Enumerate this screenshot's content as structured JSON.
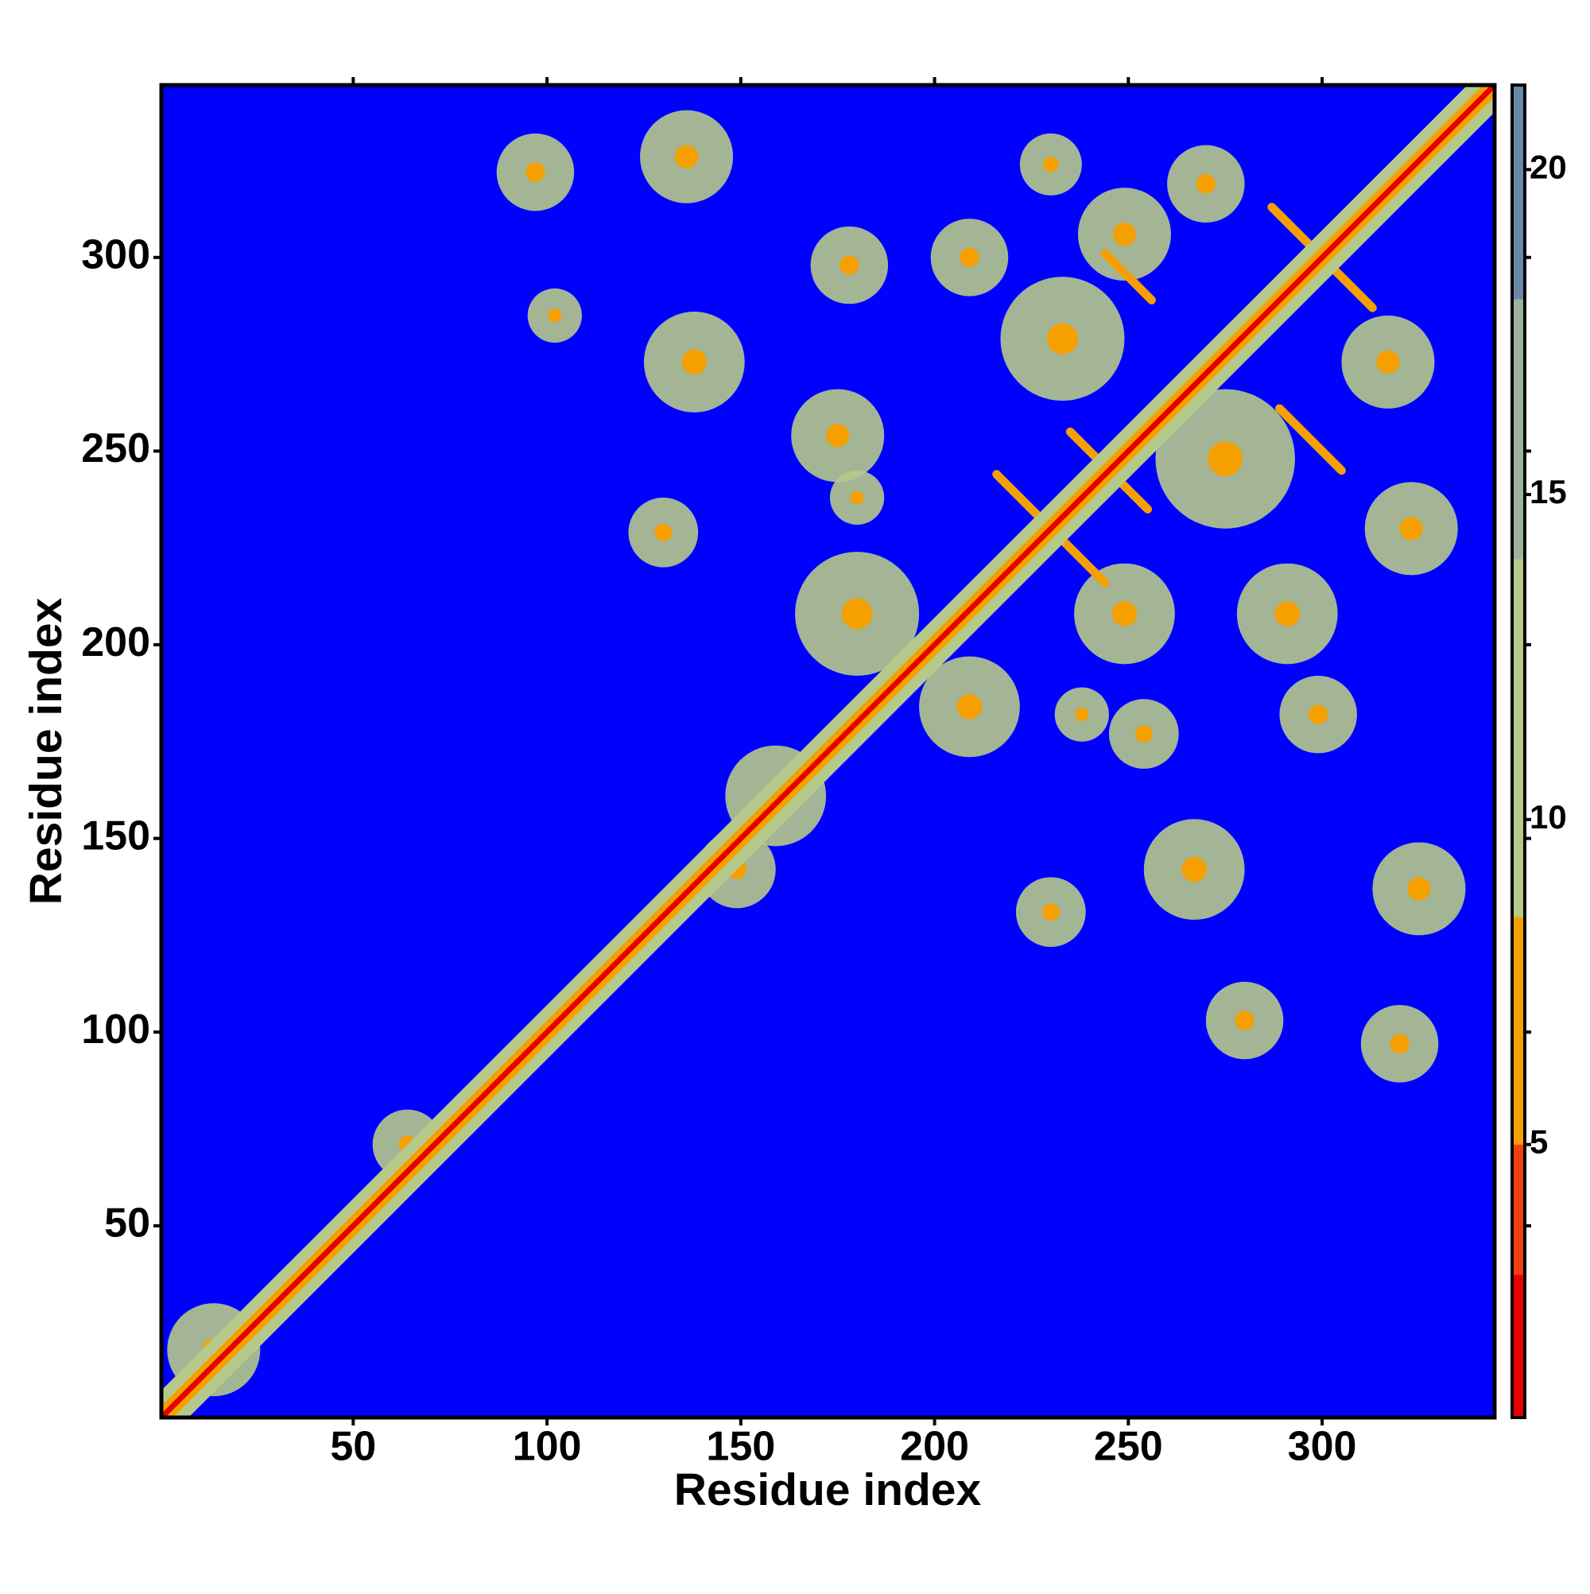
{
  "chart_data": {
    "type": "heatmap",
    "xlabel": "Residue index",
    "ylabel": "Residue index",
    "xlim": [
      0.5,
      344.5
    ],
    "ylim": [
      0.5,
      344.5
    ],
    "xticks": [
      50,
      100,
      150,
      200,
      250,
      300
    ],
    "yticks": [
      50,
      100,
      150,
      200,
      250,
      300
    ],
    "background_color": "#0000ff",
    "colorbar": {
      "zlim": [
        0.8,
        21.3
      ],
      "ticks": [
        5,
        10,
        15,
        20
      ],
      "bands": [
        {
          "to": 3,
          "color": "#e80000"
        },
        {
          "to": 5,
          "color": "#f04010"
        },
        {
          "to": 8.5,
          "color": "#f5a000"
        },
        {
          "to": 14,
          "color": "#b5c98a"
        },
        {
          "to": 18,
          "color": "#9db49a"
        },
        {
          "to": 21.3,
          "color": "#6a88a8"
        }
      ]
    },
    "diagonal": [
      {
        "half_width": 7,
        "value": 12
      },
      {
        "half_width": 3,
        "value": 7
      },
      {
        "half_width": 1,
        "value": 2
      }
    ],
    "blobs": [
      {
        "x": 97,
        "y": 322,
        "r": 10,
        "value": 12,
        "core": 7
      },
      {
        "x": 136,
        "y": 326,
        "r": 12,
        "value": 12,
        "core": 7
      },
      {
        "x": 102,
        "y": 285,
        "r": 7,
        "value": 12,
        "core": 7
      },
      {
        "x": 138,
        "y": 273,
        "r": 13,
        "value": 12,
        "core": 7
      },
      {
        "x": 130,
        "y": 229,
        "r": 9,
        "value": 12,
        "core": 7
      },
      {
        "x": 178,
        "y": 298,
        "r": 10,
        "value": 12,
        "core": 7
      },
      {
        "x": 175,
        "y": 254,
        "r": 12,
        "value": 12,
        "core": 7
      },
      {
        "x": 180,
        "y": 238,
        "r": 7,
        "value": 12,
        "core": 7
      },
      {
        "x": 209,
        "y": 300,
        "r": 10,
        "value": 12,
        "core": 7
      },
      {
        "x": 230,
        "y": 324,
        "r": 8,
        "value": 12,
        "core": 7
      },
      {
        "x": 270,
        "y": 319,
        "r": 10,
        "value": 12,
        "core": 7
      },
      {
        "x": 249,
        "y": 306,
        "r": 12,
        "value": 12,
        "core": 7
      },
      {
        "x": 317,
        "y": 273,
        "r": 12,
        "value": 12,
        "core": 7
      },
      {
        "x": 323,
        "y": 230,
        "r": 12,
        "value": 12,
        "core": 7
      },
      {
        "x": 233,
        "y": 279,
        "r": 16,
        "value": 12,
        "core": 7
      },
      {
        "x": 275,
        "y": 248,
        "r": 18,
        "value": 12,
        "core": 7
      },
      {
        "x": 291,
        "y": 208,
        "r": 13,
        "value": 12,
        "core": 7
      },
      {
        "x": 249,
        "y": 208,
        "r": 13,
        "value": 12,
        "core": 7
      },
      {
        "x": 180,
        "y": 208,
        "r": 16,
        "value": 12,
        "core": 7
      },
      {
        "x": 209,
        "y": 184,
        "r": 13,
        "value": 12,
        "core": 7
      },
      {
        "x": 238,
        "y": 182,
        "r": 7,
        "value": 12,
        "core": 7
      },
      {
        "x": 254,
        "y": 177,
        "r": 9,
        "value": 12,
        "core": 7
      },
      {
        "x": 299,
        "y": 182,
        "r": 10,
        "value": 12,
        "core": 7
      },
      {
        "x": 267,
        "y": 142,
        "r": 13,
        "value": 12,
        "core": 7
      },
      {
        "x": 230,
        "y": 131,
        "r": 9,
        "value": 12,
        "core": 7
      },
      {
        "x": 325,
        "y": 137,
        "r": 12,
        "value": 12,
        "core": 7
      },
      {
        "x": 280,
        "y": 103,
        "r": 10,
        "value": 12,
        "core": 7
      },
      {
        "x": 320,
        "y": 97,
        "r": 10,
        "value": 12,
        "core": 7
      },
      {
        "x": 159,
        "y": 161,
        "r": 13,
        "value": 12,
        "core": 7
      },
      {
        "x": 149,
        "y": 142,
        "r": 10,
        "value": 12,
        "core": 7
      },
      {
        "x": 64,
        "y": 71,
        "r": 9,
        "value": 12,
        "core": 7
      },
      {
        "x": 14,
        "y": 18,
        "r": 12,
        "value": 12,
        "core": 7
      }
    ],
    "crosses": [
      {
        "x": 230,
        "y": 230,
        "half_length": 14,
        "value": 7
      },
      {
        "x": 245,
        "y": 245,
        "half_length": 10,
        "value": 7
      },
      {
        "x": 300,
        "y": 300,
        "half_length": 13,
        "value": 7
      },
      {
        "x": 297,
        "y": 253,
        "half_length": 8,
        "value": 7
      },
      {
        "x": 250,
        "y": 295,
        "half_length": 6,
        "value": 7
      }
    ]
  }
}
